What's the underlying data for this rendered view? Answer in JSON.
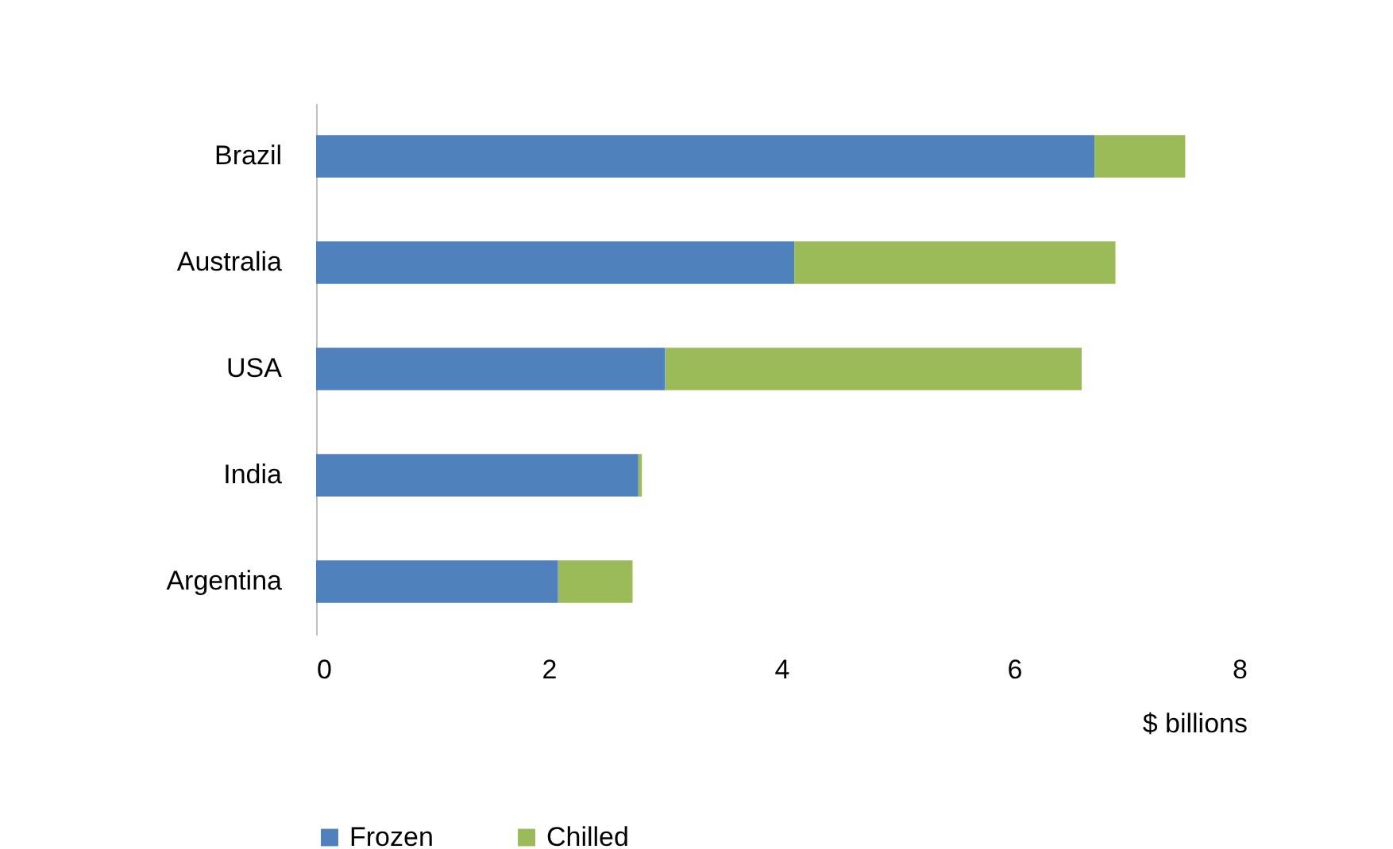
{
  "chart_data": {
    "type": "bar",
    "orientation": "horizontal",
    "stacked": true,
    "categories": [
      "Brazil",
      "Australia",
      "USA",
      "India",
      "Argentina"
    ],
    "series": [
      {
        "name": "Frozen",
        "color": "#4f81bd",
        "values": [
          6.69,
          4.11,
          3.0,
          2.77,
          2.08
        ]
      },
      {
        "name": "Chilled",
        "color": "#9bbb59",
        "values": [
          0.78,
          2.76,
          3.58,
          0.03,
          0.64
        ]
      }
    ],
    "xlabel": "$ billions",
    "xlim": [
      0,
      8
    ],
    "xticks": [
      0,
      2,
      4,
      6,
      8
    ],
    "grid": false,
    "legend": "bottom"
  }
}
